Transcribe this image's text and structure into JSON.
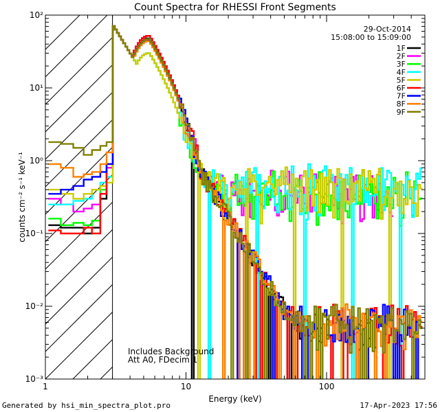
{
  "chart_data": {
    "type": "line",
    "title": "Count Spectra for RHESSI Front Segments",
    "xlabel": "Energy (keV)",
    "ylabel": "counts cm⁻² s⁻¹ keV⁻¹",
    "xscale": "log",
    "yscale": "log",
    "xlim": [
      1,
      500
    ],
    "ylim": [
      0.001,
      100
    ],
    "x_tick_labels": [
      "1",
      "10",
      "100"
    ],
    "y_tick_labels": [
      "10⁻³",
      "10⁻²",
      "10⁻¹",
      "10⁰",
      "10¹",
      "10²"
    ],
    "date": "29-Oct-2014",
    "time_range": "15:08:00 to 15:09:00",
    "annotation_lines": [
      "Includes Background",
      "Att A0, FDecim 1"
    ],
    "hatched_region_end": 3,
    "series": [
      {
        "name": "1F",
        "color": "#000000",
        "peak": 48,
        "low": [
          0.13,
          0.12,
          0.12,
          0.1,
          0.12,
          0.3,
          0.8
        ],
        "tail_noise": 0.1,
        "tail_max_e": 70,
        "drop": [
          10,
          70
        ]
      },
      {
        "name": "2F",
        "color": "#ff00ff",
        "peak": 52,
        "low": [
          0.3,
          0.25,
          0.2,
          0.22,
          0.25,
          0.35,
          0.8
        ],
        "tail_noise": 0.5,
        "tail_max_e": 300,
        "drop": []
      },
      {
        "name": "3F",
        "color": "#00ff00",
        "peak": 30,
        "low": [
          0.16,
          0.13,
          0.14,
          0.13,
          0.15,
          0.4,
          0.9
        ],
        "tail_noise": 0.5,
        "tail_max_e": 500,
        "drop": []
      },
      {
        "name": "4F",
        "color": "#00ffff",
        "peak": 30,
        "low": [
          0.25,
          0.25,
          0.28,
          0.3,
          0.4,
          0.5,
          0.6
        ],
        "tail_noise": 0.6,
        "tail_max_e": 500,
        "drop": [
          3.4,
          6.5
        ]
      },
      {
        "name": "5F",
        "color": "#cccc00",
        "peak": 30,
        "low": [
          0.4,
          0.35,
          0.3,
          0.35,
          0.4,
          0.45,
          0.5
        ],
        "tail_noise": 0.6,
        "tail_max_e": 500,
        "drop": [
          7.5
        ]
      },
      {
        "name": "6F",
        "color": "#ff0000",
        "peak": 52,
        "low": [
          0.11,
          0.1,
          0.1,
          0.12,
          0.1,
          0.35,
          0.9
        ],
        "tail_noise": 0.1,
        "tail_max_e": 500,
        "drop": []
      },
      {
        "name": "7F",
        "color": "#0000ff",
        "peak": 45,
        "low": [
          0.35,
          0.4,
          0.45,
          0.55,
          0.6,
          0.7,
          0.9
        ],
        "tail_noise": 0.1,
        "tail_max_e": 500,
        "drop": []
      },
      {
        "name": "8F",
        "color": "#ff8000",
        "peak": 44,
        "low": [
          0.9,
          0.8,
          0.6,
          0.65,
          0.7,
          0.9,
          1.3
        ],
        "tail_noise": 0.1,
        "tail_max_e": 500,
        "drop": []
      },
      {
        "name": "9F",
        "color": "#808000",
        "peak": 47,
        "low": [
          1.8,
          1.7,
          1.5,
          1.2,
          1.4,
          1.6,
          1.8
        ],
        "tail_noise": 0.1,
        "tail_max_e": 500,
        "drop": []
      }
    ]
  },
  "footer": {
    "left": "Generated by hsi_min_spectra_plot.pro",
    "right": "17-Apr-2023 17:56"
  }
}
